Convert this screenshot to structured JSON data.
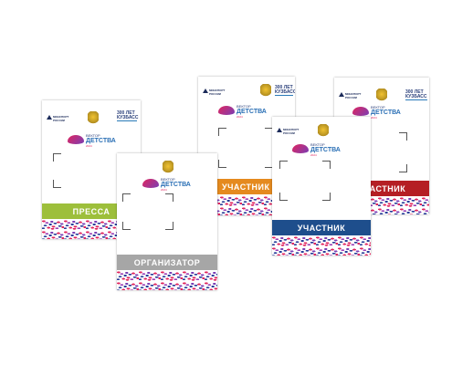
{
  "logos": {
    "ministry": "МИНСПОРТ РОССИИ",
    "anniversary": "300 ЛЕТ КУЗБАСС",
    "dream_top": "ВЕКТОР",
    "dream_main": "ДЕТСТВА",
    "dream_year": "2024"
  },
  "badges": [
    {
      "label": "ПРЕССА",
      "color": "#9dbf3b"
    },
    {
      "label": "ОРГАНИЗАТОР",
      "color": "#a6a6a6"
    },
    {
      "label": "УЧАСТНИК",
      "color": "#e58a1f"
    },
    {
      "label": "УЧАСТНИК",
      "color": "#1e4e8c"
    },
    {
      "label": "УЧАСТНИК",
      "color": "#b51f24"
    }
  ]
}
